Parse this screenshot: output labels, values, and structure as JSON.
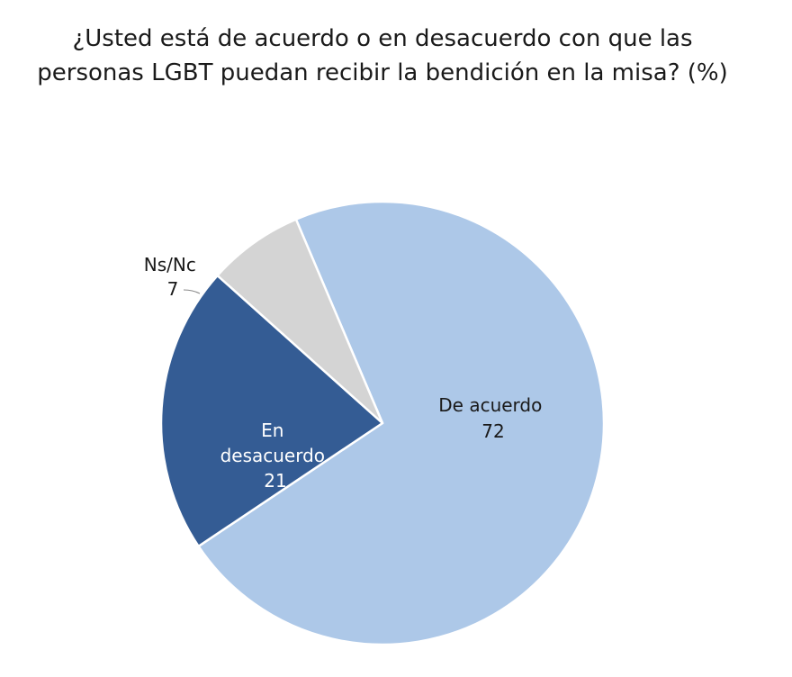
{
  "chart_data": {
    "type": "pie",
    "title_lines": [
      "¿Usted está de acuerdo o en desacuerdo con que las",
      "personas LGBT puedan recibir la bendición en la misa? (%)"
    ],
    "slices": [
      {
        "label": "De acuerdo",
        "value": 72,
        "color": "#adc8e8",
        "text_color": "#1a1a1a"
      },
      {
        "label": "En desacuerdo",
        "value": 21,
        "color": "#345c94",
        "text_color": "#ffffff"
      },
      {
        "label": "Ns/Nc",
        "value": 7,
        "color": "#d4d4d4",
        "text_color": "#1a1a1a"
      }
    ],
    "start_angle_deg": -23,
    "direction": "clockwise",
    "unit": "%"
  }
}
